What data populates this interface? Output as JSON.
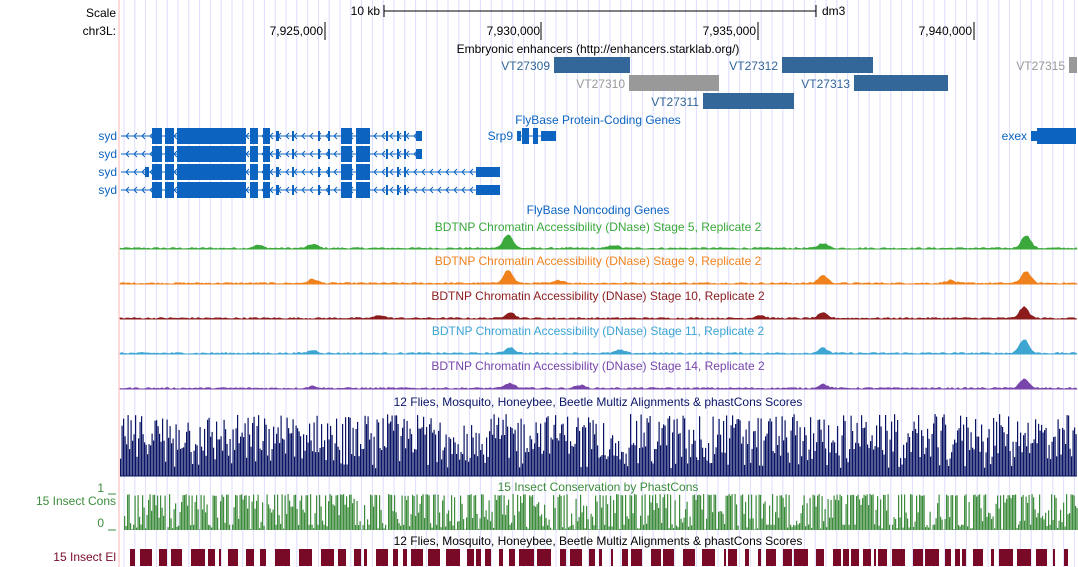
{
  "ruler": {
    "scale_label": "Scale",
    "scale_bar_label": "10 kb",
    "assembly": "dm3",
    "chrom_label": "chr3L:",
    "ticks": [
      "7,925,000",
      "7,930,000",
      "7,935,000",
      "7,940,000"
    ]
  },
  "tracks": {
    "enhancers": {
      "title": "Embryonic enhancers (http://enhancers.starklab.org/)",
      "items": [
        {
          "name": "VT27309",
          "start": 7931300,
          "end": 7932800,
          "color": "#336699"
        },
        {
          "name": "VT27310",
          "start": 7932800,
          "end": 7934800,
          "color": "#999999"
        },
        {
          "name": "VT27311",
          "start": 7934700,
          "end": 7936700,
          "color": "#336699"
        },
        {
          "name": "VT27312",
          "start": 7936200,
          "end": 7938200,
          "color": "#336699"
        },
        {
          "name": "VT27313",
          "start": 7938200,
          "end": 7940200,
          "color": "#336699"
        },
        {
          "name": "VT27315",
          "start": 7943300,
          "end": 7943500,
          "color": "#999999"
        }
      ]
    },
    "flybase_coding": {
      "title": "FlyBase Protein-Coding Genes",
      "genes": [
        "syd",
        "syd",
        "syd",
        "syd",
        "Srp9",
        "exex"
      ],
      "color": "#0c64c0"
    },
    "flybase_noncoding": {
      "title": "FlyBase Noncoding Genes"
    },
    "dnase": [
      {
        "title": "BDTNP Chromatin Accessibility (DNase) Stage 5, Replicate 2",
        "color": "#3aa83a"
      },
      {
        "title": "BDTNP Chromatin Accessibility (DNase) Stage 9, Replicate 2",
        "color": "#f0821e"
      },
      {
        "title": "BDTNP Chromatin Accessibility (DNase) Stage 10, Replicate 2",
        "color": "#8c1c1c"
      },
      {
        "title": "BDTNP Chromatin Accessibility (DNase) Stage 11, Replicate 2",
        "color": "#3ca5d2"
      },
      {
        "title": "BDTNP Chromatin Accessibility (DNase) Stage 14, Replicate 2",
        "color": "#7846aa"
      }
    ],
    "multiz": {
      "title": "12 Flies, Mosquito, Honeybee, Beetle Multiz Alignments & phastCons Scores",
      "color": "#0a1464"
    },
    "insect_cons": {
      "label": "15 Insect Cons",
      "title": "15 Insect Conservation by PhastCons",
      "y_max_label": "1",
      "y_min_label": "0",
      "color": "#3c8c3c"
    },
    "insect_el": {
      "label": "15 Insect El",
      "title": "12 Flies, Mosquito, Honeybee, Beetle Multiz Alignments & phastCons Scores",
      "color": "#780a28"
    }
  },
  "colors": {
    "gridline": "#dcdcff",
    "left_border": "#ffb4b4",
    "ruler": "#000000"
  }
}
